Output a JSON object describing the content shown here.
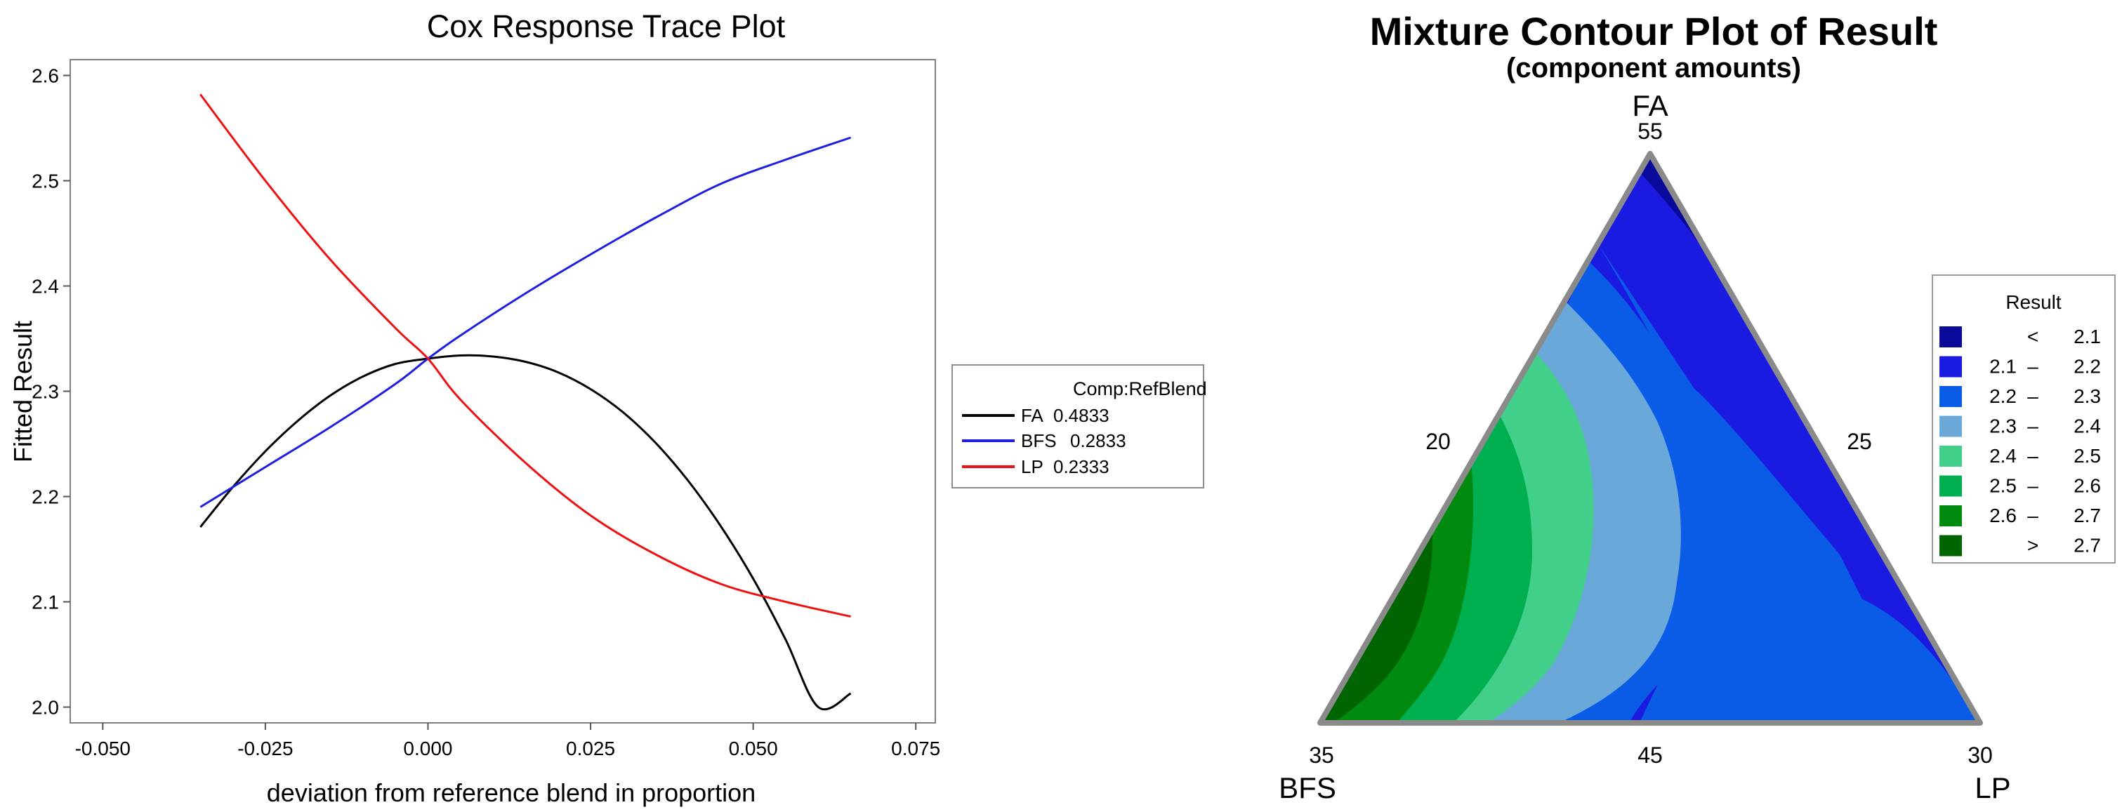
{
  "chart_data": [
    {
      "type": "line",
      "title": "Cox Response Trace Plot",
      "xlabel": "deviation from reference blend in proportion",
      "ylabel": "Fitted Result",
      "xlim": [
        -0.055,
        0.078
      ],
      "ylim": [
        1.985,
        2.615
      ],
      "xticks": [
        -0.05,
        -0.025,
        0.0,
        0.025,
        0.05,
        0.075
      ],
      "xtick_labels": [
        "-0.050",
        "-0.025",
        "0.000",
        "0.025",
        "0.050",
        "0.075"
      ],
      "yticks": [
        2.0,
        2.1,
        2.2,
        2.3,
        2.4,
        2.5,
        2.6
      ],
      "ytick_labels": [
        "2.0",
        "2.1",
        "2.2",
        "2.3",
        "2.4",
        "2.5",
        "2.6"
      ],
      "grid": false,
      "legend": {
        "title": "Comp:RefBlend",
        "placement": "right",
        "entries": [
          {
            "label": "FA",
            "value": "0.4833"
          },
          {
            "label": "BFS",
            "value": "0.2833"
          },
          {
            "label": "LP",
            "value": "0.2333"
          }
        ]
      },
      "series": [
        {
          "name": "FA",
          "color": "#000000",
          "x": [
            -0.035,
            -0.03,
            -0.025,
            -0.02,
            -0.015,
            -0.01,
            -0.005,
            0.0,
            0.005,
            0.01,
            0.015,
            0.02,
            0.025,
            0.03,
            0.035,
            0.04,
            0.045,
            0.05,
            0.055,
            0.06,
            0.065
          ],
          "y": [
            2.171,
            2.209,
            2.243,
            2.272,
            2.296,
            2.314,
            2.326,
            2.331,
            2.334,
            2.333,
            2.328,
            2.318,
            2.302,
            2.28,
            2.251,
            2.215,
            2.172,
            2.122,
            2.064,
            2.0,
            2.013
          ]
        },
        {
          "name": "BFS",
          "color": "#1f1fe0",
          "x": [
            -0.035,
            -0.025,
            -0.015,
            -0.005,
            0.0,
            0.005,
            0.015,
            0.025,
            0.035,
            0.045,
            0.055,
            0.065
          ],
          "y": [
            2.19,
            2.228,
            2.266,
            2.307,
            2.331,
            2.353,
            2.393,
            2.43,
            2.465,
            2.497,
            2.52,
            2.541
          ]
        },
        {
          "name": "LP",
          "color": "#ee1111",
          "x": [
            -0.035,
            -0.025,
            -0.015,
            -0.005,
            0.0,
            0.005,
            0.015,
            0.025,
            0.035,
            0.045,
            0.055,
            0.065
          ],
          "y": [
            2.582,
            2.5,
            2.425,
            2.36,
            2.331,
            2.292,
            2.232,
            2.182,
            2.145,
            2.117,
            2.1,
            2.086
          ]
        }
      ]
    },
    {
      "type": "ternary-contour",
      "title": "Mixture Contour Plot of Result",
      "subtitle": "(component amounts)",
      "components": [
        "FA",
        "BFS",
        "LP"
      ],
      "vertex_labels": {
        "top": "FA",
        "bottom_left": "BFS",
        "bottom_right": "LP"
      },
      "vertex_values": {
        "top": "55",
        "bottom_left": "35",
        "bottom_right": "30"
      },
      "edge_labels": {
        "left": "20",
        "right": "25",
        "bottom": "45"
      },
      "legend": {
        "title": "Result",
        "placement": "right",
        "entries": [
          {
            "lo": "",
            "op": "<",
            "hi": "2.1",
            "color": "#0a0a9a"
          },
          {
            "lo": "2.1",
            "op": "–",
            "hi": "2.2",
            "color": "#1a1ae0"
          },
          {
            "lo": "2.2",
            "op": "–",
            "hi": "2.3",
            "color": "#0a5ce6"
          },
          {
            "lo": "2.3",
            "op": "–",
            "hi": "2.4",
            "color": "#6aa8da"
          },
          {
            "lo": "2.4",
            "op": "–",
            "hi": "2.5",
            "color": "#42cf8a"
          },
          {
            "lo": "2.5",
            "op": "–",
            "hi": "2.6",
            "color": "#00b050"
          },
          {
            "lo": "2.6",
            "op": "–",
            "hi": "2.7",
            "color": "#008a10"
          },
          {
            "lo": "",
            "op": ">",
            "hi": "2.7",
            "color": "#006400"
          }
        ]
      }
    }
  ]
}
